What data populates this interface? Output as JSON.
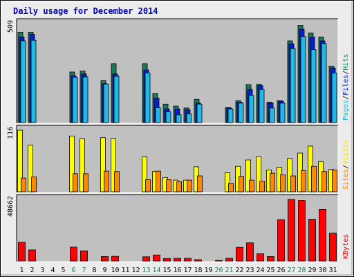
{
  "chart_data": {
    "type": "bar",
    "title": "Daily usage for December 2014",
    "categories": [
      "1",
      "2",
      "3",
      "4",
      "5",
      "6",
      "7",
      "8",
      "9",
      "10",
      "11",
      "12",
      "13",
      "14",
      "15",
      "16",
      "17",
      "18",
      "19",
      "20",
      "21",
      "22",
      "23",
      "24",
      "25",
      "26",
      "27",
      "28",
      "29",
      "30",
      "31"
    ],
    "weekend_days": [
      "6",
      "7",
      "13",
      "14",
      "20",
      "21",
      "27",
      "28"
    ],
    "panels": [
      {
        "id": "hits",
        "max_label": "509",
        "ymax": 509,
        "legend": [
          {
            "text": "Pages",
            "color": "#22b8e8"
          },
          {
            "text": "Files",
            "color": "#0020d0"
          },
          {
            "text": "Hits",
            "color": "#1a7a60"
          }
        ],
        "series": [
          {
            "name": "Hits",
            "color": "#1a7a60",
            "values": [
              465,
              465,
              0,
              0,
              0,
              260,
              265,
              0,
              215,
              303,
              0,
              0,
              303,
              150,
              95,
              85,
              75,
              120,
              0,
              0,
              77,
              112,
              195,
              197,
              105,
              112,
              420,
              500,
              460,
              440,
              290
            ]
          },
          {
            "name": "Files",
            "color": "#0020d0",
            "values": [
              440,
              453,
              0,
              0,
              0,
              240,
              250,
              0,
              200,
              250,
              0,
              0,
              270,
              125,
              70,
              70,
              65,
              100,
              0,
              0,
              75,
              105,
              170,
              190,
              100,
              110,
              405,
              480,
              440,
              420,
              280
            ]
          },
          {
            "name": "Pages",
            "color": "#22b8e8",
            "values": [
              420,
              423,
              0,
              0,
              0,
              233,
              235,
              0,
              198,
              238,
              0,
              0,
              255,
              77,
              55,
              40,
              45,
              95,
              0,
              0,
              70,
              100,
              140,
              170,
              75,
              100,
              380,
              442,
              375,
              406,
              255
            ]
          }
        ]
      },
      {
        "id": "visits",
        "max_label": "116",
        "ymax": 116,
        "legend": [
          {
            "text": "Sites",
            "color": "#ff8800"
          },
          {
            "text": "Visits",
            "color": "#ffe000"
          }
        ],
        "series": [
          {
            "name": "Visits",
            "color": "#ffff00",
            "values": [
              116,
              88,
              0,
              0,
              0,
              105,
              100,
              0,
              102,
              100,
              0,
              0,
              66,
              38,
              27,
              22,
              22,
              47,
              0,
              0,
              36,
              48,
              60,
              66,
              41,
              46,
              63,
              73,
              86,
              57,
              42
            ]
          },
          {
            "name": "Sites",
            "color": "#ff8800",
            "values": [
              26,
              28,
              0,
              0,
              0,
              34,
              34,
              0,
              39,
              38,
              0,
              0,
              23,
              39,
              23,
              19,
              22,
              30,
              0,
              0,
              16,
              29,
              22,
              20,
              35,
              32,
              30,
              40,
              48,
              38,
              41
            ]
          }
        ]
      },
      {
        "id": "kbytes",
        "max_label": "48662",
        "ymax": 48662,
        "legend": [
          {
            "text": "KBytes",
            "color": "#e00000"
          }
        ],
        "series": [
          {
            "name": "KBytes",
            "color": "#ff0000",
            "values": [
              14800,
              8800,
              0,
              0,
              0,
              11000,
              8100,
              0,
              3600,
              3800,
              0,
              0,
              3400,
              4800,
              2000,
              2200,
              2200,
              1100,
              0,
              500,
              2200,
              10800,
              14400,
              5800,
              3600,
              32700,
              48662,
              47800,
              33000,
              40800,
              22100
            ]
          }
        ]
      }
    ]
  }
}
